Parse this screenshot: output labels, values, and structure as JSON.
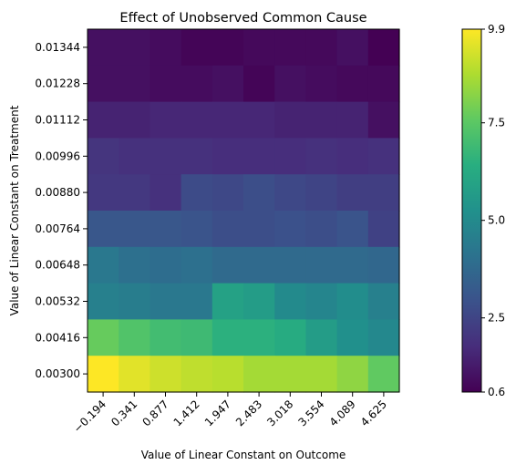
{
  "chart_data": {
    "type": "heatmap",
    "title": "Effect of Unobserved Common Cause",
    "xlabel": "Value of Linear Constant on Outcome",
    "ylabel": "Value of Linear Constant on Treatment",
    "x_tick_labels": [
      "−0.194",
      "0.341",
      "0.877",
      "1.412",
      "1.947",
      "2.483",
      "3.018",
      "3.554",
      "4.089",
      "4.625"
    ],
    "y_tick_labels": [
      "0.01344",
      "0.01228",
      "0.01112",
      "0.00996",
      "0.00880",
      "0.00764",
      "0.00648",
      "0.00532",
      "0.00416",
      "0.00300"
    ],
    "values": [
      [
        1.0,
        1.0,
        0.9,
        0.7,
        0.7,
        0.8,
        0.8,
        0.8,
        1.0,
        0.6
      ],
      [
        1.0,
        1.0,
        0.9,
        0.9,
        1.0,
        0.7,
        1.0,
        0.9,
        0.8,
        0.8
      ],
      [
        1.5,
        1.5,
        1.6,
        1.6,
        1.6,
        1.6,
        1.5,
        1.5,
        1.5,
        1.0
      ],
      [
        2.0,
        1.9,
        1.9,
        1.9,
        1.8,
        1.8,
        1.8,
        1.9,
        1.8,
        1.9
      ],
      [
        2.1,
        2.1,
        1.9,
        2.7,
        2.6,
        2.8,
        2.6,
        2.5,
        2.3,
        2.3
      ],
      [
        3.1,
        3.1,
        3.1,
        3.0,
        2.8,
        2.8,
        2.9,
        2.8,
        3.0,
        2.4
      ],
      [
        4.3,
        4.0,
        3.9,
        4.0,
        3.8,
        3.8,
        3.8,
        3.8,
        3.8,
        3.7
      ],
      [
        4.6,
        4.5,
        4.3,
        4.3,
        5.9,
        5.7,
        5.0,
        4.8,
        5.1,
        4.6
      ],
      [
        7.7,
        7.3,
        7.0,
        6.9,
        6.5,
        6.5,
        6.3,
        5.7,
        5.2,
        4.9
      ],
      [
        9.9,
        9.5,
        9.2,
        9.0,
        8.9,
        8.6,
        8.6,
        8.6,
        8.3,
        7.6
      ]
    ],
    "colorbar": {
      "colormap": "viridis",
      "range": [
        0.6,
        9.9
      ],
      "tick_values": [
        0.6,
        2.5,
        5.0,
        7.5,
        9.9
      ],
      "tick_labels": [
        "0.6",
        "2.5",
        "5.0",
        "7.5",
        "9.9"
      ]
    }
  }
}
